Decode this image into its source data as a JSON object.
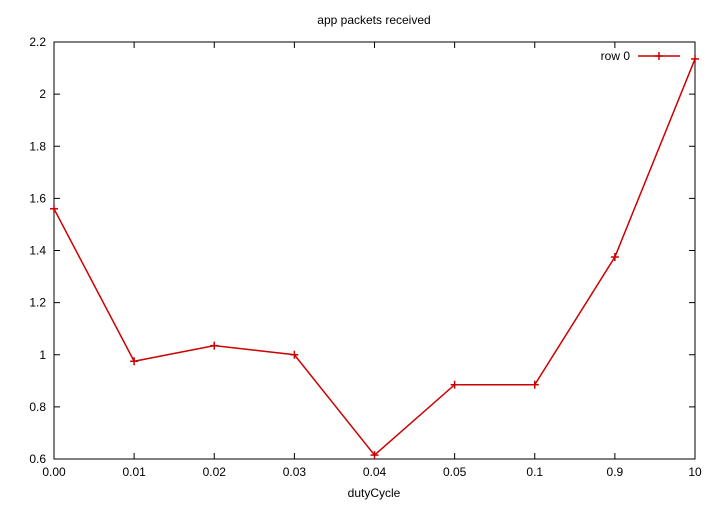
{
  "chart_data": {
    "type": "line",
    "title": "app packets received",
    "xlabel": "dutyCycle",
    "ylabel": "",
    "categories": [
      "0.00",
      "0.01",
      "0.02",
      "0.03",
      "0.04",
      "0.05",
      "0.1",
      "0.9",
      "10"
    ],
    "ylim": [
      0.6,
      2.2
    ],
    "yticks": [
      "0.6",
      "0.8",
      "1",
      "1.2",
      "1.4",
      "1.6",
      "1.8",
      "2",
      "2.2"
    ],
    "ytick_values": [
      0.6,
      0.8,
      1.0,
      1.2,
      1.4,
      1.6,
      1.8,
      2.0,
      2.2
    ],
    "grid": false,
    "legend_position": "top-right",
    "series": [
      {
        "name": "row 0",
        "color": "#cc0000",
        "marker": "plus",
        "values": [
          1.56,
          0.975,
          1.035,
          1.0,
          0.615,
          0.885,
          0.885,
          1.375,
          2.135
        ]
      }
    ]
  }
}
